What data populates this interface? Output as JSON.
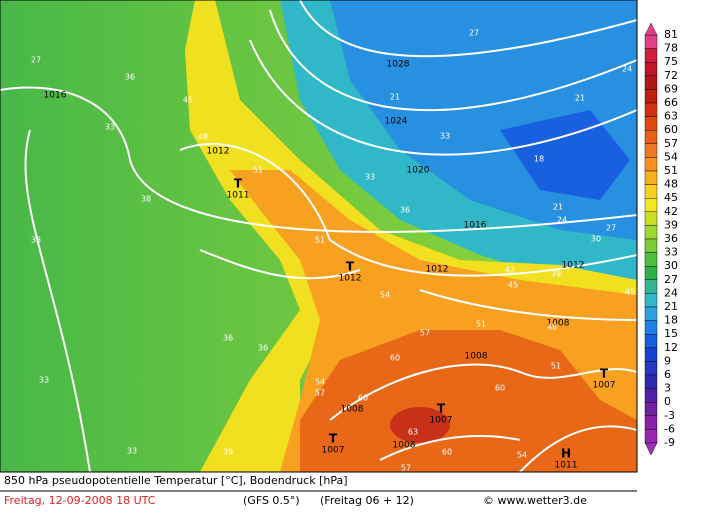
{
  "footer": {
    "title": "850 hPa pseudopotentielle Temperatur [°C], Bodendruck [hPa]",
    "valid_time": "Freitag, 12-09-2008   18 UTC",
    "model": "(GFS 0.5°)",
    "run": "(Freitag 06 + 12)",
    "credit": "© www.wetter3.de"
  },
  "legend": {
    "ticks": [
      81,
      78,
      75,
      72,
      69,
      66,
      63,
      60,
      57,
      54,
      51,
      48,
      45,
      42,
      39,
      36,
      33,
      30,
      27,
      24,
      21,
      18,
      15,
      12,
      9,
      6,
      3,
      0,
      -3,
      -6,
      -9
    ],
    "colors": [
      "#e0408a",
      "#d02040",
      "#c01828",
      "#b01818",
      "#c02010",
      "#d03010",
      "#e04810",
      "#e86018",
      "#f07820",
      "#f89020",
      "#f8b020",
      "#f8d020",
      "#f0e820",
      "#c8e020",
      "#a0d830",
      "#78cc38",
      "#50c040",
      "#30b048",
      "#30b890",
      "#30b8c8",
      "#30a0e0",
      "#2080e8",
      "#1860e0",
      "#1840d0",
      "#2838c0",
      "#3028b0",
      "#5020a8",
      "#7020a0",
      "#8820a8",
      "#9828b0",
      "#a030b8"
    ]
  },
  "map": {
    "isobar_labels": [
      "1028",
      "1024",
      "1020",
      "1016",
      "1016",
      "1012",
      "1012",
      "1012",
      "1008",
      "1008",
      "1008",
      "1008"
    ],
    "centers": [
      {
        "type": "T",
        "pressure": "1011"
      },
      {
        "type": "T",
        "pressure": "1012"
      },
      {
        "type": "T",
        "pressure": "1007"
      },
      {
        "type": "T",
        "pressure": "1007"
      },
      {
        "type": "T",
        "pressure": "1007"
      },
      {
        "type": "H",
        "pressure": "1011"
      }
    ],
    "temperature_labels": [
      "27",
      "36",
      "33",
      "45",
      "48",
      "51",
      "38",
      "33",
      "36",
      "36",
      "33",
      "33",
      "39",
      "33",
      "36",
      "51",
      "54",
      "57",
      "42",
      "39",
      "45",
      "51",
      "45",
      "48",
      "27",
      "21",
      "33",
      "18",
      "21",
      "24",
      "30",
      "27",
      "21",
      "24",
      "60",
      "60",
      "63",
      "60",
      "57",
      "54",
      "54",
      "57",
      "60",
      "51"
    ]
  }
}
